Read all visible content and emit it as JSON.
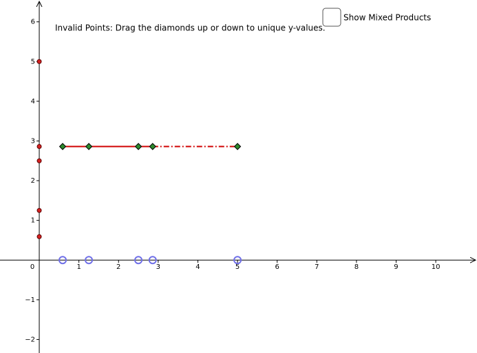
{
  "instruction": "Invalid Points: Drag the diamonds up or down to unique y-values.",
  "checkbox_label": "Show Mixed Products",
  "axes": {
    "xlim": [
      -0.99,
      11.04
    ],
    "ylim": [
      -2.34,
      6.55
    ],
    "xticks": [
      1,
      2,
      3,
      4,
      5,
      6,
      7,
      8,
      9,
      10
    ],
    "yticks": [
      {
        "value": -2,
        "label": "−2"
      },
      {
        "value": -1,
        "label": "−1"
      },
      1,
      2,
      3,
      4,
      5,
      6
    ],
    "origin_label": "0"
  },
  "values": [
    0.59,
    1.25,
    2.5,
    2.86,
    5
  ],
  "level": 2.86
}
